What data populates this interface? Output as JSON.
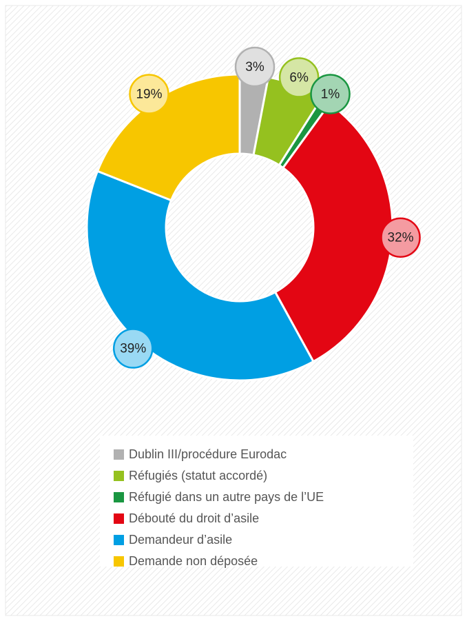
{
  "chart_data": {
    "type": "donut",
    "categories": [
      "Dublin III/procédure Eurodac",
      "Réfugiés (statut accordé)",
      "Réfugié dans un autre pays de l’UE",
      "Débouté du droit d’asile",
      "Demandeur d’asile",
      "Demande non déposée"
    ],
    "values": [
      3,
      6,
      1,
      32,
      39,
      19
    ],
    "value_labels": [
      "3%",
      "6%",
      "1%",
      "32%",
      "39%",
      "19%"
    ],
    "colors": [
      "#b1b1b1",
      "#95c11f",
      "#1a9641",
      "#e30613",
      "#009fe3",
      "#f7c600"
    ],
    "legend": "bottom"
  }
}
